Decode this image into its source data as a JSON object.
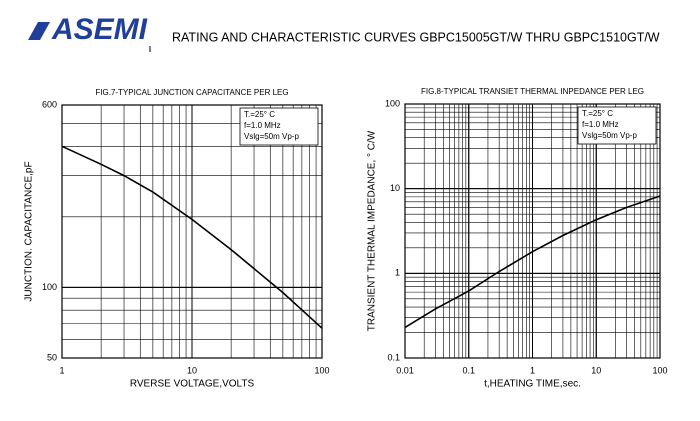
{
  "header": {
    "logo": "ASEMI",
    "title": "RATING AND CHARACTERISTIC CURVES GBPC15005GT/W THRU GBPC1510GT/W"
  },
  "chart_data": [
    {
      "type": "line",
      "title": "FIG.7-TYPICAL JUNCTION CAPACITANCE PER LEG",
      "x_label": "RVERSE VOLTAGE,VOLTS",
      "y_label": "JUNCTION. CAPACITANCE,pF",
      "x": [
        1,
        2,
        3,
        5,
        10,
        20,
        50,
        100
      ],
      "values": [
        400,
        335,
        300,
        255,
        195,
        145,
        95,
        67
      ],
      "color": "#000000",
      "xlim": [
        1,
        100
      ],
      "ylim": [
        50,
        600
      ],
      "xticks": [
        1,
        10,
        100
      ],
      "yticks": [
        50,
        100,
        600
      ],
      "log_x": true,
      "log_y": true,
      "grid": true,
      "annotations": [
        "T.=25° C",
        "f=1.0 MHz",
        "Vslg=50m Vp-p"
      ]
    },
    {
      "type": "line",
      "title": "FIG.8-TYPICAL TRANSIET THERMAL INPEDANCE PER LEG",
      "x_label": "t,HEATING TIME,sec.",
      "y_label": "TRANSIENT THERMAL IMPEDANCE, ° C/W",
      "x": [
        0.01,
        0.03,
        0.1,
        0.3,
        1,
        3,
        10,
        30,
        100
      ],
      "values": [
        0.23,
        0.38,
        0.62,
        1.05,
        1.8,
        2.8,
        4.3,
        6,
        8.2
      ],
      "color": "#000000",
      "xlim": [
        0.01,
        100
      ],
      "ylim": [
        0.1,
        100
      ],
      "xticks": [
        0.01,
        0.1,
        1,
        10,
        100
      ],
      "yticks": [
        0.1,
        1,
        10,
        100
      ],
      "log_x": true,
      "log_y": true,
      "grid": true,
      "annotations": [
        "T.=25° C",
        "f=1.0 MHz",
        "Vslg=50m Vp-p"
      ]
    }
  ]
}
